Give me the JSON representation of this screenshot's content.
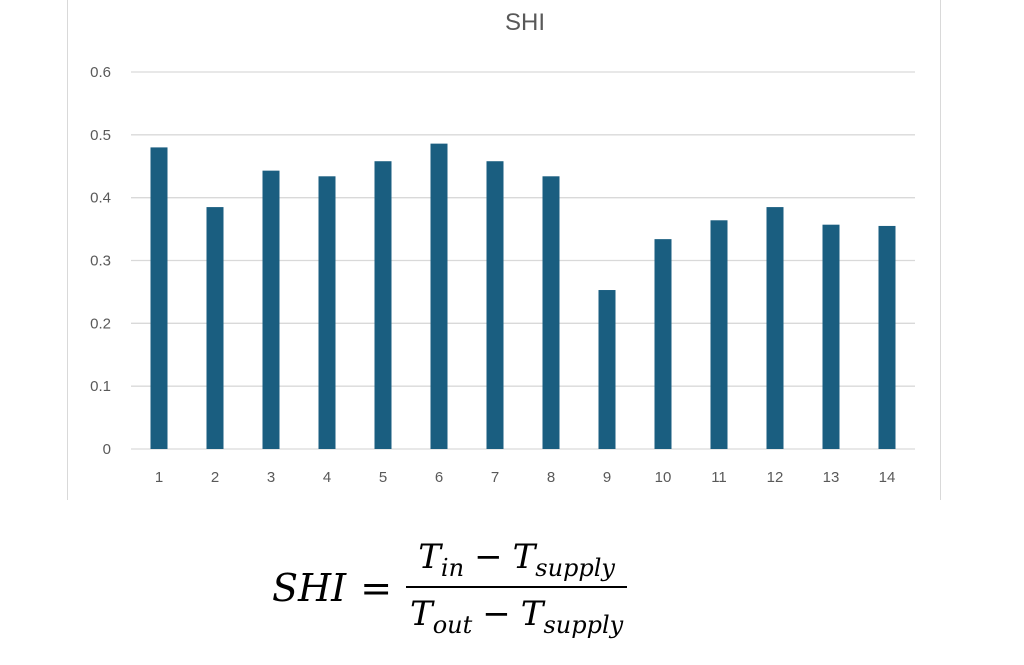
{
  "chart_data": {
    "type": "bar",
    "title": "SHI",
    "categories": [
      "1",
      "2",
      "3",
      "4",
      "5",
      "6",
      "7",
      "8",
      "9",
      "10",
      "11",
      "12",
      "13",
      "14"
    ],
    "values": [
      0.48,
      0.385,
      0.443,
      0.434,
      0.458,
      0.486,
      0.458,
      0.434,
      0.253,
      0.334,
      0.364,
      0.385,
      0.357,
      0.355
    ],
    "ylim": [
      0,
      0.6
    ],
    "yticks": [
      "0",
      "0.1",
      "0.2",
      "0.3",
      "0.4",
      "0.5",
      "0.6"
    ],
    "xlabel": "",
    "ylabel": "",
    "grid": true,
    "bar_color": "#1a5e80"
  },
  "formula": {
    "lhs": "SHI",
    "equals": "=",
    "num_a": "T",
    "num_a_sub": "in",
    "num_minus": "−",
    "num_b": "T",
    "num_b_sub": "supply",
    "den_a": "T",
    "den_a_sub": "out",
    "den_minus": "−",
    "den_b": "T",
    "den_b_sub": "supply"
  }
}
